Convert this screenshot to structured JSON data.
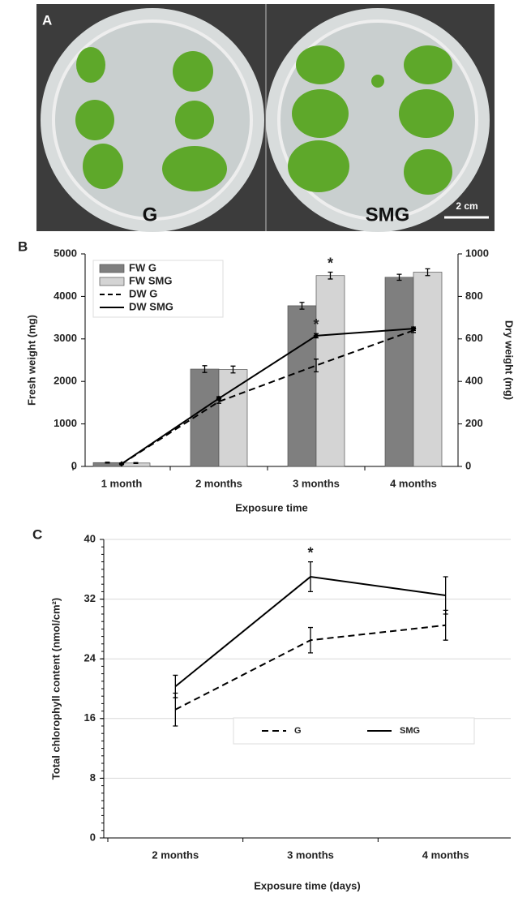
{
  "photo": {
    "label": "A",
    "left_label": "G",
    "right_label": "SMG",
    "scale_bar": "2 cm"
  },
  "chart_data": [
    {
      "type": "bar",
      "panel": "B",
      "xlabel": "Exposure time",
      "ylabel": "Fresh weight (mg)",
      "y2label": "Dry weight (mg)",
      "categories": [
        "1 month",
        "2 months",
        "3 months",
        "4 months"
      ],
      "ylim": [
        0,
        5000
      ],
      "yticks": [
        0,
        1000,
        2000,
        3000,
        4000,
        5000
      ],
      "y2lim": [
        0,
        1000
      ],
      "y2ticks": [
        0,
        200,
        400,
        600,
        800,
        1000
      ],
      "grid": false,
      "legend": "upper left",
      "series": [
        {
          "name": "FW G",
          "type": "bar",
          "color": "#7f7f7f",
          "values": [
            90,
            2290,
            3780,
            4450
          ],
          "errors": [
            10,
            80,
            80,
            70
          ]
        },
        {
          "name": "FW SMG",
          "type": "bar",
          "color": "#d4d4d4",
          "values": [
            80,
            2280,
            4490,
            4570
          ],
          "errors": [
            10,
            80,
            80,
            80
          ]
        },
        {
          "name": "DW G",
          "type": "line",
          "dash": true,
          "axis": "y2",
          "color": "#000000",
          "values": [
            12,
            305,
            475,
            640
          ],
          "errors": [
            3,
            8,
            30,
            10
          ]
        },
        {
          "name": "DW SMG",
          "type": "line",
          "dash": false,
          "axis": "y2",
          "color": "#000000",
          "values": [
            12,
            320,
            615,
            648
          ],
          "errors": [
            3,
            8,
            10,
            8
          ]
        }
      ],
      "annotations": [
        {
          "text": "*",
          "at": "3 months",
          "series": "FW SMG"
        },
        {
          "text": "*",
          "at": "3 months",
          "series": "DW SMG"
        }
      ]
    },
    {
      "type": "line",
      "panel": "C",
      "xlabel": "Exposure time (days)",
      "ylabel": "Total chlorophyll content (nmol/cm²)",
      "categories": [
        "2 months",
        "3 months",
        "4 months"
      ],
      "ylim": [
        0,
        40
      ],
      "yticks": [
        0,
        8,
        16,
        24,
        32,
        40
      ],
      "grid": true,
      "legend": "lower center",
      "series": [
        {
          "name": "G",
          "dash": true,
          "color": "#000000",
          "values": [
            17.2,
            26.5,
            28.5
          ],
          "errors": [
            2.2,
            1.7,
            2.0
          ]
        },
        {
          "name": "SMG",
          "dash": false,
          "color": "#000000",
          "values": [
            20.3,
            35.0,
            32.5
          ],
          "errors": [
            1.5,
            2.0,
            2.5
          ]
        }
      ],
      "annotations": [
        {
          "text": "*",
          "at": "3 months",
          "series": "SMG"
        }
      ]
    }
  ]
}
